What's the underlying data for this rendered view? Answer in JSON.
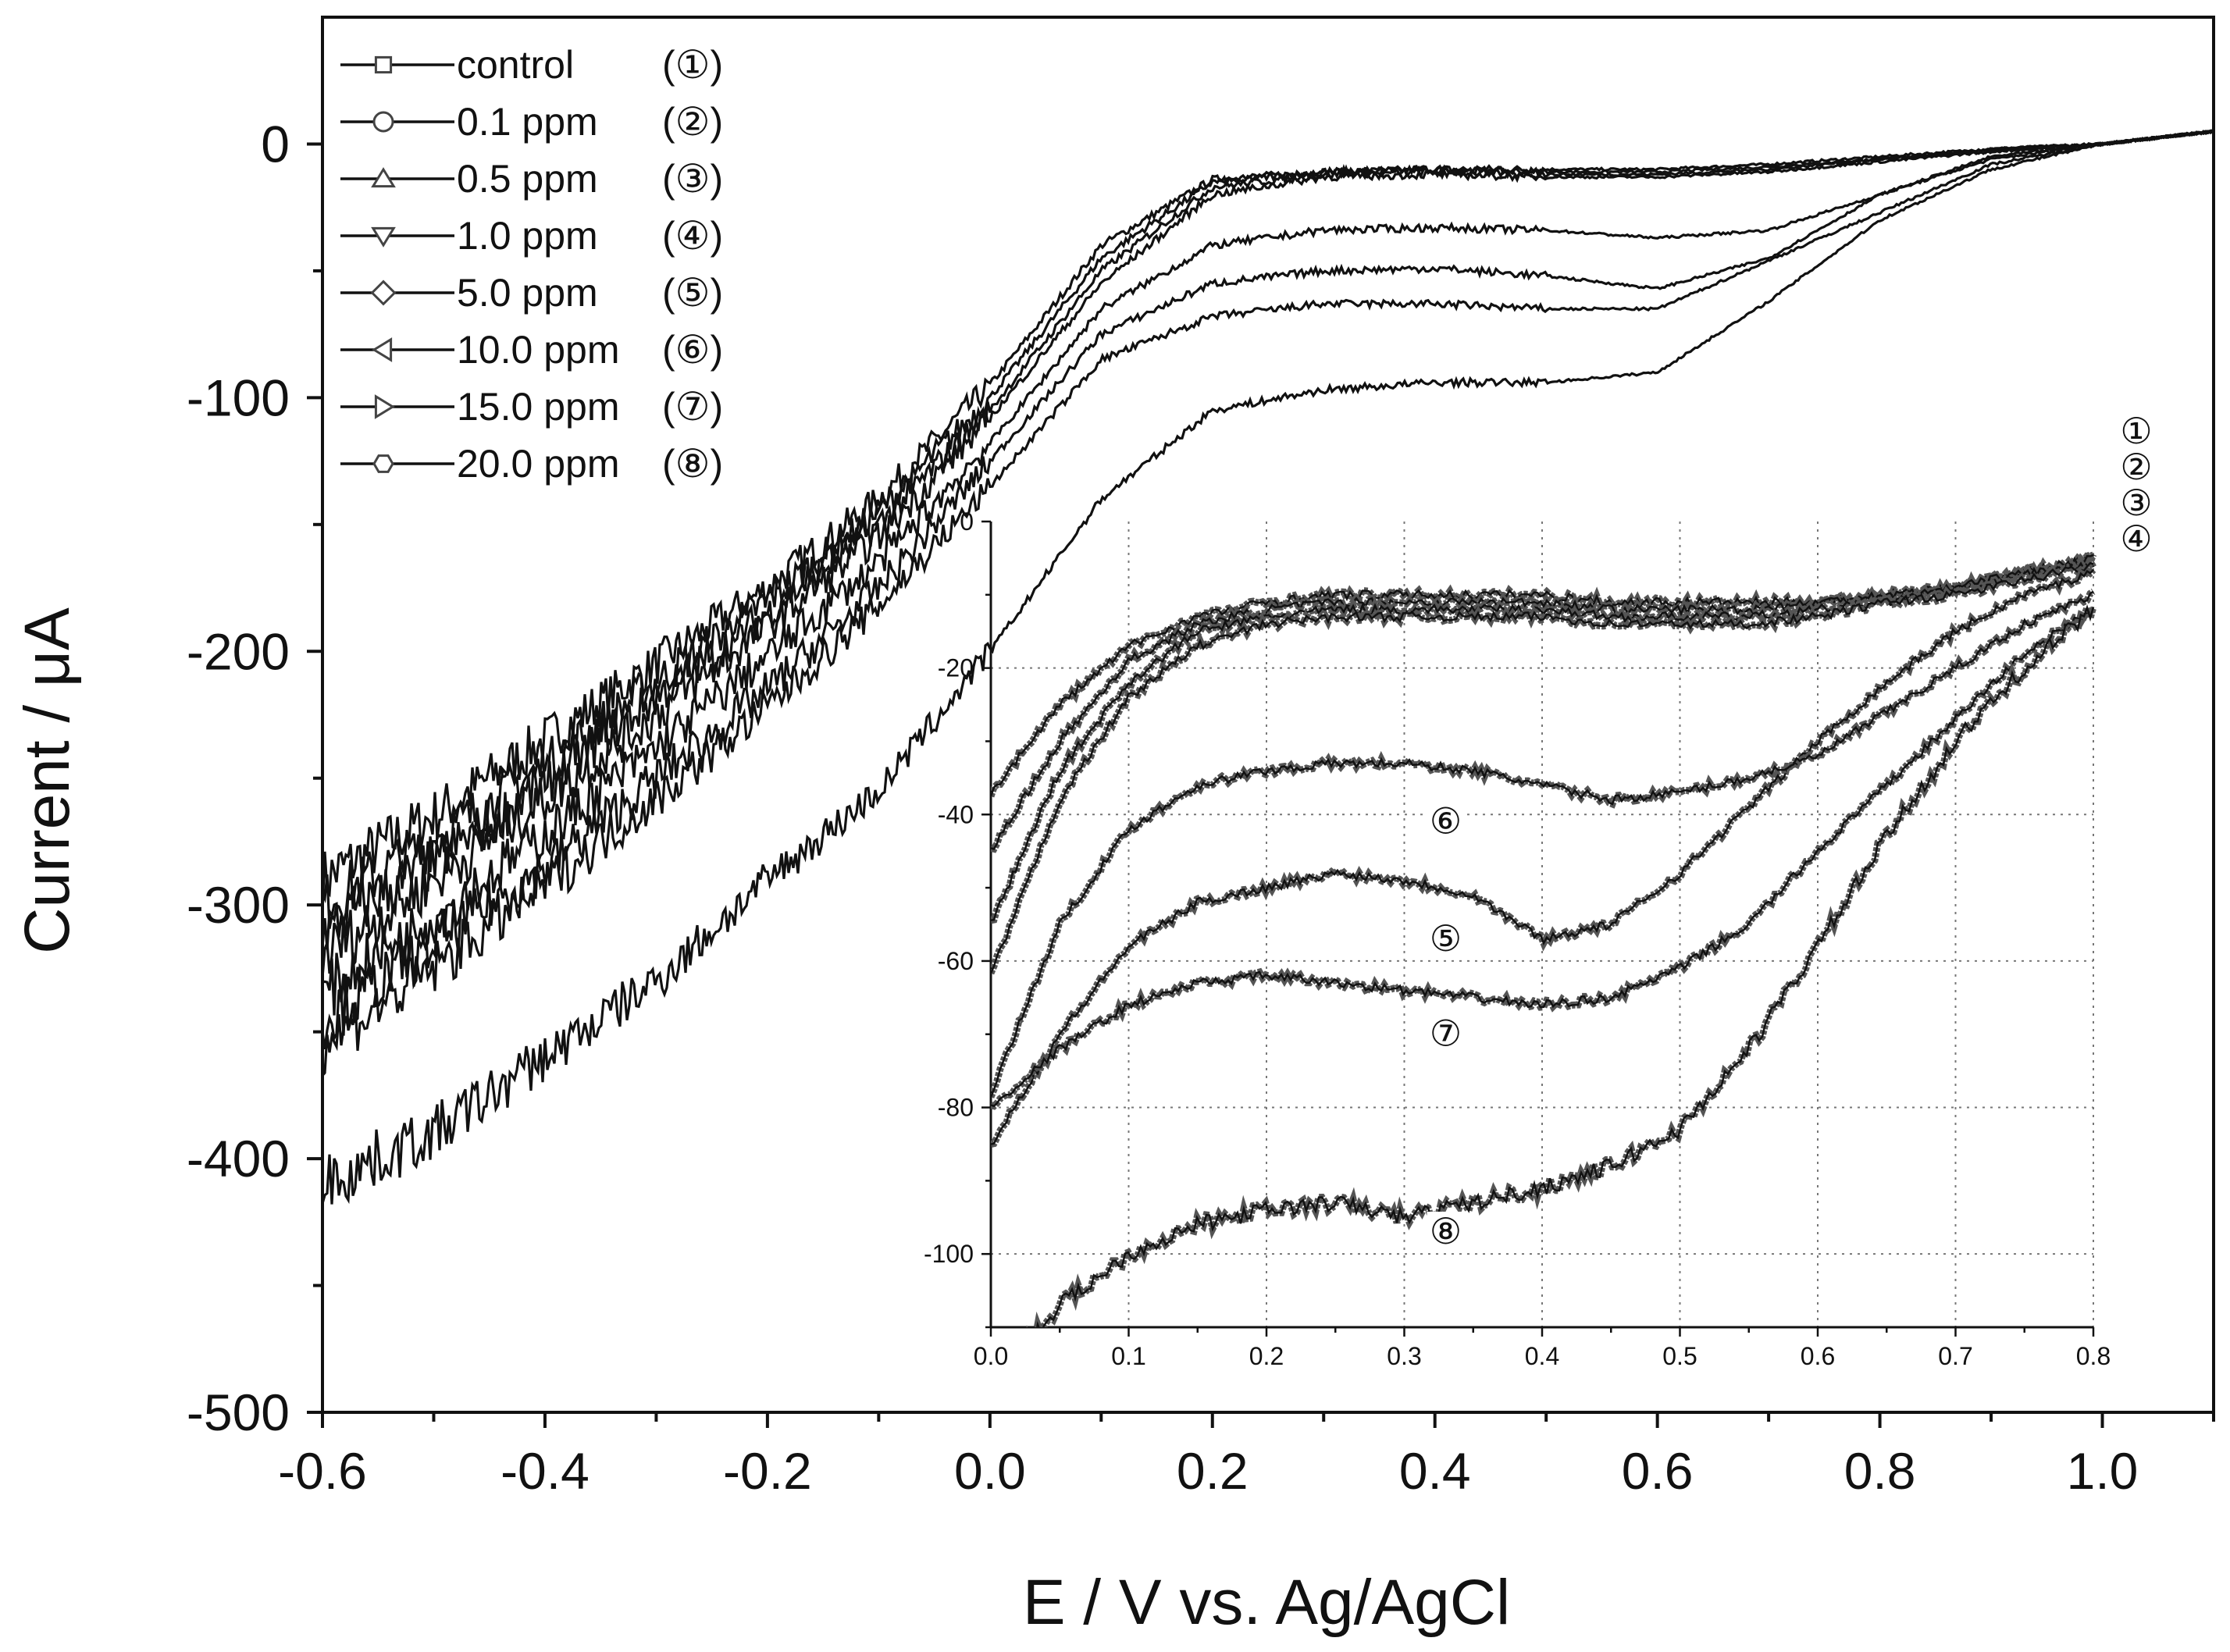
{
  "chart_data": [
    {
      "type": "line",
      "xlabel": "E / V vs. Ag/AgCl",
      "ylabel": "Current / μA",
      "xlim": [
        -0.6,
        1.1
      ],
      "ylim": [
        -500,
        50
      ],
      "xticks": [
        "-0.6",
        "-0.4",
        "-0.2",
        "0.0",
        "0.2",
        "0.4",
        "0.6",
        "0.8",
        "1.0"
      ],
      "yticks": [
        "0",
        "-100",
        "-200",
        "-300",
        "-400",
        "-500"
      ],
      "grid": false,
      "legend_position": "top-left",
      "x": [
        -0.6,
        -0.5,
        -0.4,
        -0.3,
        -0.2,
        -0.1,
        0.0,
        0.1,
        0.2,
        0.3,
        0.4,
        0.5,
        0.6,
        0.7,
        0.8,
        0.9,
        1.0,
        1.1
      ],
      "series": [
        {
          "name": "control",
          "id": "①",
          "marker": "square",
          "values": [
            -290,
            -265,
            -235,
            -205,
            -175,
            -140,
            -95,
            -40,
            -14,
            -11,
            -10,
            -10,
            -10,
            -8,
            -5,
            -2,
            0,
            5
          ]
        },
        {
          "name": "0.1   ppm",
          "id": "②",
          "marker": "circle",
          "values": [
            -300,
            -275,
            -245,
            -212,
            -180,
            -145,
            -100,
            -45,
            -15,
            -11,
            -10,
            -11,
            -11,
            -9,
            -6,
            -2,
            0,
            5
          ]
        },
        {
          "name": "0.5   ppm",
          "id": "③",
          "marker": "triangle-up",
          "values": [
            -310,
            -283,
            -252,
            -218,
            -185,
            -150,
            -105,
            -50,
            -17,
            -12,
            -11,
            -12,
            -12,
            -10,
            -6,
            -3,
            0,
            5
          ]
        },
        {
          "name": "1.0   ppm",
          "id": "④",
          "marker": "triangle-down",
          "values": [
            -320,
            -290,
            -258,
            -225,
            -190,
            -155,
            -108,
            -55,
            -20,
            -13,
            -12,
            -13,
            -13,
            -11,
            -7,
            -3,
            0,
            5
          ]
        },
        {
          "name": "5.0   ppm",
          "id": "⑤",
          "marker": "diamond",
          "values": [
            -345,
            -315,
            -285,
            -250,
            -215,
            -175,
            -125,
            -75,
            -55,
            -50,
            -49,
            -52,
            -57,
            -45,
            -20,
            -5,
            0,
            5
          ]
        },
        {
          "name": "10.0 ppm",
          "id": "⑥",
          "marker": "triangle-left",
          "values": [
            -335,
            -305,
            -272,
            -238,
            -202,
            -165,
            -118,
            -65,
            -40,
            -34,
            -33,
            -34,
            -37,
            -34,
            -20,
            -6,
            0,
            5
          ]
        },
        {
          "name": "15.0 ppm",
          "id": "⑦",
          "marker": "triangle-right",
          "values": [
            -355,
            -325,
            -292,
            -258,
            -222,
            -182,
            -135,
            -85,
            -68,
            -63,
            -63,
            -65,
            -65,
            -46,
            -27,
            -8,
            0,
            5
          ]
        },
        {
          "name": "20.0 ppm",
          "id": "⑧",
          "marker": "hexagon",
          "values": [
            -410,
            -390,
            -360,
            -330,
            -290,
            -255,
            -200,
            -140,
            -105,
            -97,
            -94,
            -94,
            -90,
            -62,
            -30,
            -10,
            0,
            5
          ]
        }
      ],
      "side_labels": [
        "①",
        "②",
        "③",
        "④"
      ]
    },
    {
      "type": "line",
      "role": "inset",
      "xlim": [
        0,
        0.8
      ],
      "ylim": [
        -110,
        0
      ],
      "xticks": [
        "0.0",
        "0.1",
        "0.2",
        "0.3",
        "0.4",
        "0.5",
        "0.6",
        "0.7",
        "0.8"
      ],
      "yticks": [
        "0",
        "-20",
        "-40",
        "-60",
        "-80",
        "-100"
      ],
      "grid": true,
      "x": [
        0,
        0.05,
        0.1,
        0.15,
        0.2,
        0.25,
        0.3,
        0.35,
        0.4,
        0.45,
        0.5,
        0.55,
        0.6,
        0.65,
        0.7,
        0.75,
        0.8
      ],
      "series": [
        {
          "id": "①",
          "values": [
            -37,
            -25,
            -17,
            -13,
            -11,
            -10,
            -10,
            -10,
            -10,
            -11,
            -11,
            -11,
            -11,
            -10,
            -9,
            -7,
            -5
          ]
        },
        {
          "id": "②",
          "values": [
            -45,
            -30,
            -19,
            -14,
            -12,
            -11,
            -11,
            -11,
            -11,
            -12,
            -12,
            -12,
            -11,
            -10,
            -9,
            -7,
            -5
          ]
        },
        {
          "id": "③",
          "values": [
            -55,
            -34,
            -22,
            -15,
            -13,
            -12,
            -12,
            -12,
            -12,
            -13,
            -13,
            -13,
            -12,
            -11,
            -9,
            -7,
            -6
          ]
        },
        {
          "id": "④",
          "values": [
            -62,
            -38,
            -24,
            -17,
            -14,
            -13,
            -13,
            -13,
            -13,
            -14,
            -14,
            -14,
            -13,
            -11,
            -10,
            -8,
            -6
          ]
        },
        {
          "id": "⑤",
          "values": [
            -85,
            -70,
            -58,
            -52,
            -50,
            -48,
            -49,
            -51,
            -57,
            -55,
            -48,
            -39,
            -30,
            -22,
            -15,
            -10,
            -7
          ]
        },
        {
          "id": "⑥",
          "values": [
            -78,
            -55,
            -42,
            -36,
            -34,
            -33,
            -33,
            -34,
            -36,
            -38,
            -37,
            -35,
            -32,
            -26,
            -20,
            -14,
            -10
          ]
        },
        {
          "id": "⑦",
          "values": [
            -80,
            -72,
            -66,
            -63,
            -62,
            -63,
            -64,
            -65,
            -66,
            -65,
            -61,
            -55,
            -45,
            -36,
            -27,
            -18,
            -12
          ]
        },
        {
          "id": "⑧",
          "values": [
            -118,
            -107,
            -100,
            -96,
            -94,
            -93,
            -95,
            -93,
            -91,
            -88,
            -83,
            -72,
            -58,
            -43,
            -30,
            -20,
            -12
          ]
        }
      ],
      "curve_labels": [
        {
          "text": "⑥",
          "x": 0.33,
          "y": -41
        },
        {
          "text": "⑤",
          "x": 0.33,
          "y": -57
        },
        {
          "text": "⑦",
          "x": 0.33,
          "y": -70
        },
        {
          "text": "⑧",
          "x": 0.33,
          "y": -97
        }
      ]
    }
  ]
}
